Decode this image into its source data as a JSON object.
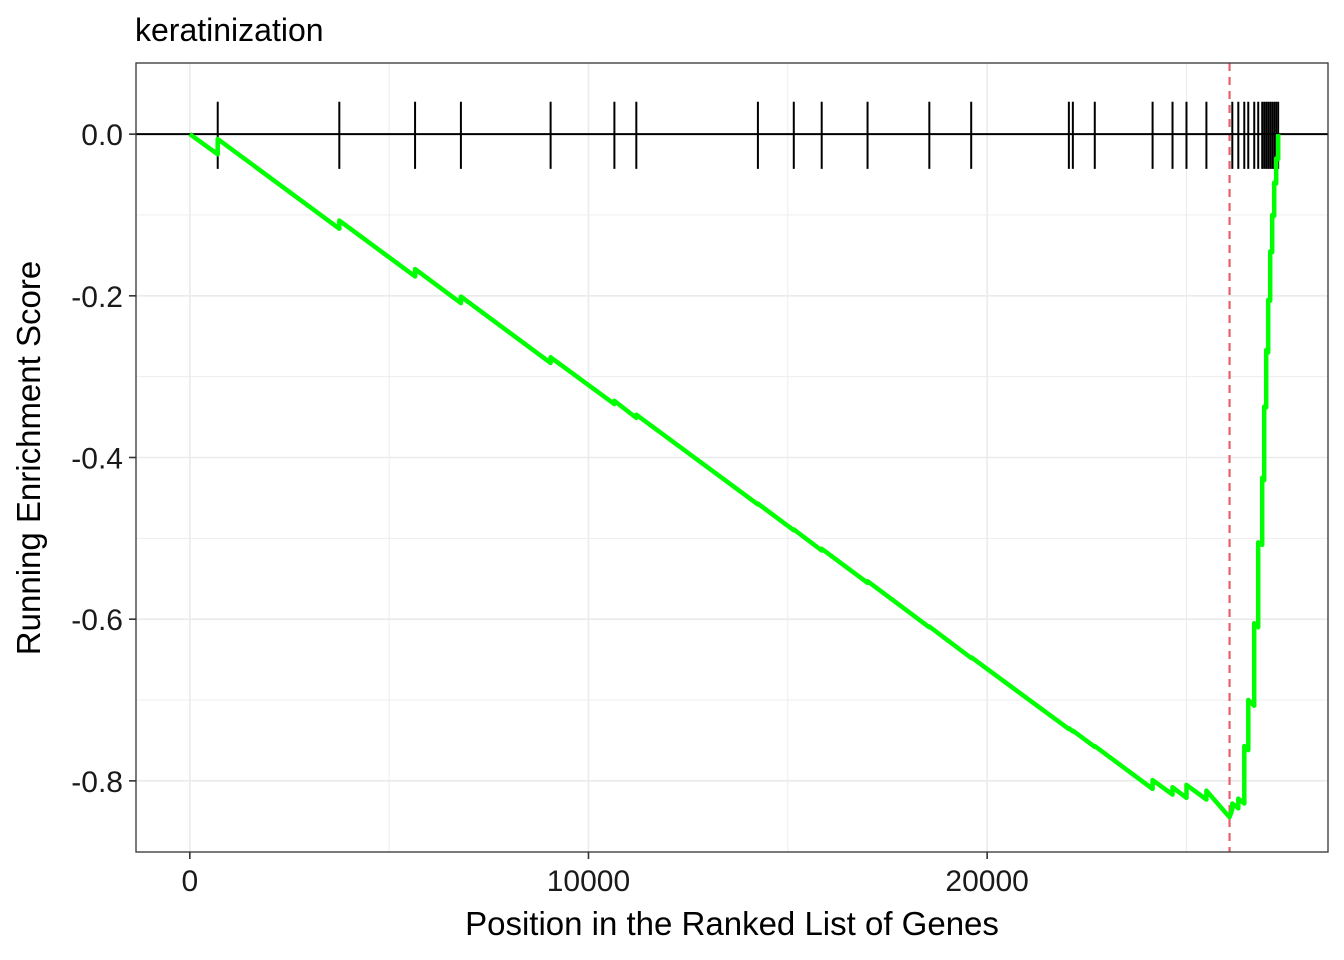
{
  "chart_data": {
    "type": "line",
    "title": "keratinization",
    "xlabel": "Position in the Ranked List of Genes",
    "ylabel": "Running Enrichment Score",
    "xlim": [
      -1350,
      28550
    ],
    "ylim": [
      -0.888,
      0.088
    ],
    "x_ticks": [
      0,
      10000,
      20000
    ],
    "x_tick_labels": [
      "0",
      "10000",
      "20000"
    ],
    "y_ticks": [
      0.0,
      -0.2,
      -0.4,
      -0.6,
      -0.8
    ],
    "y_tick_labels": [
      "0.0",
      "-0.2",
      "-0.4",
      "-0.6",
      "-0.8"
    ],
    "grid": true,
    "line_color": "#00ff00",
    "peak_line": {
      "x": 26080,
      "color": "#e8606a"
    },
    "hit_positions": [
      700,
      3750,
      5650,
      6800,
      9050,
      10650,
      11200,
      14250,
      15150,
      15850,
      17000,
      18550,
      19600,
      22050,
      22150,
      22700,
      24150,
      24650,
      25000,
      25500,
      26150,
      26300,
      26450,
      26550,
      26700,
      26800,
      26900,
      26950,
      27000,
      27050,
      27100,
      27150,
      27200,
      27250,
      27300
    ],
    "series": [
      {
        "x": [
          0,
          700,
          700,
          3750,
          3750,
          5650,
          5650,
          6800,
          6800,
          9050,
          9050,
          10650,
          10650,
          11200,
          11200,
          14250,
          14250,
          15150,
          15150,
          15850,
          15850,
          17000,
          17000,
          18550,
          18550,
          19600,
          19600,
          22050,
          22050,
          22150,
          22150,
          22700,
          22700,
          24150,
          24150,
          24650,
          24650,
          25000,
          25000,
          25500,
          25500,
          26080,
          26150,
          26150,
          26300,
          26300,
          26450,
          26450,
          26550,
          26550,
          26700,
          26700,
          26800,
          26800,
          26900,
          26900,
          26950,
          26950,
          27000,
          27000,
          27050,
          27050,
          27100,
          27100,
          27150,
          27150,
          27200,
          27200,
          27250,
          27250,
          27300,
          27300
        ],
        "y": [
          0.0,
          -0.025,
          -0.006,
          -0.117,
          -0.107,
          -0.176,
          -0.167,
          -0.209,
          -0.201,
          -0.283,
          -0.276,
          -0.334,
          -0.33,
          -0.351,
          -0.347,
          -0.458,
          -0.457,
          -0.49,
          -0.489,
          -0.515,
          -0.513,
          -0.555,
          -0.553,
          -0.61,
          -0.609,
          -0.648,
          -0.647,
          -0.736,
          -0.735,
          -0.739,
          -0.738,
          -0.758,
          -0.757,
          -0.81,
          -0.799,
          -0.817,
          -0.808,
          -0.821,
          -0.805,
          -0.823,
          -0.812,
          -0.845,
          -0.835,
          -0.828,
          -0.834,
          -0.822,
          -0.828,
          -0.757,
          -0.762,
          -0.7,
          -0.707,
          -0.605,
          -0.61,
          -0.505,
          -0.508,
          -0.425,
          -0.428,
          -0.337,
          -0.338,
          -0.267,
          -0.27,
          -0.205,
          -0.206,
          -0.145,
          -0.146,
          -0.1,
          -0.101,
          -0.06,
          -0.061,
          -0.03,
          -0.031,
          0.0
        ]
      }
    ]
  }
}
